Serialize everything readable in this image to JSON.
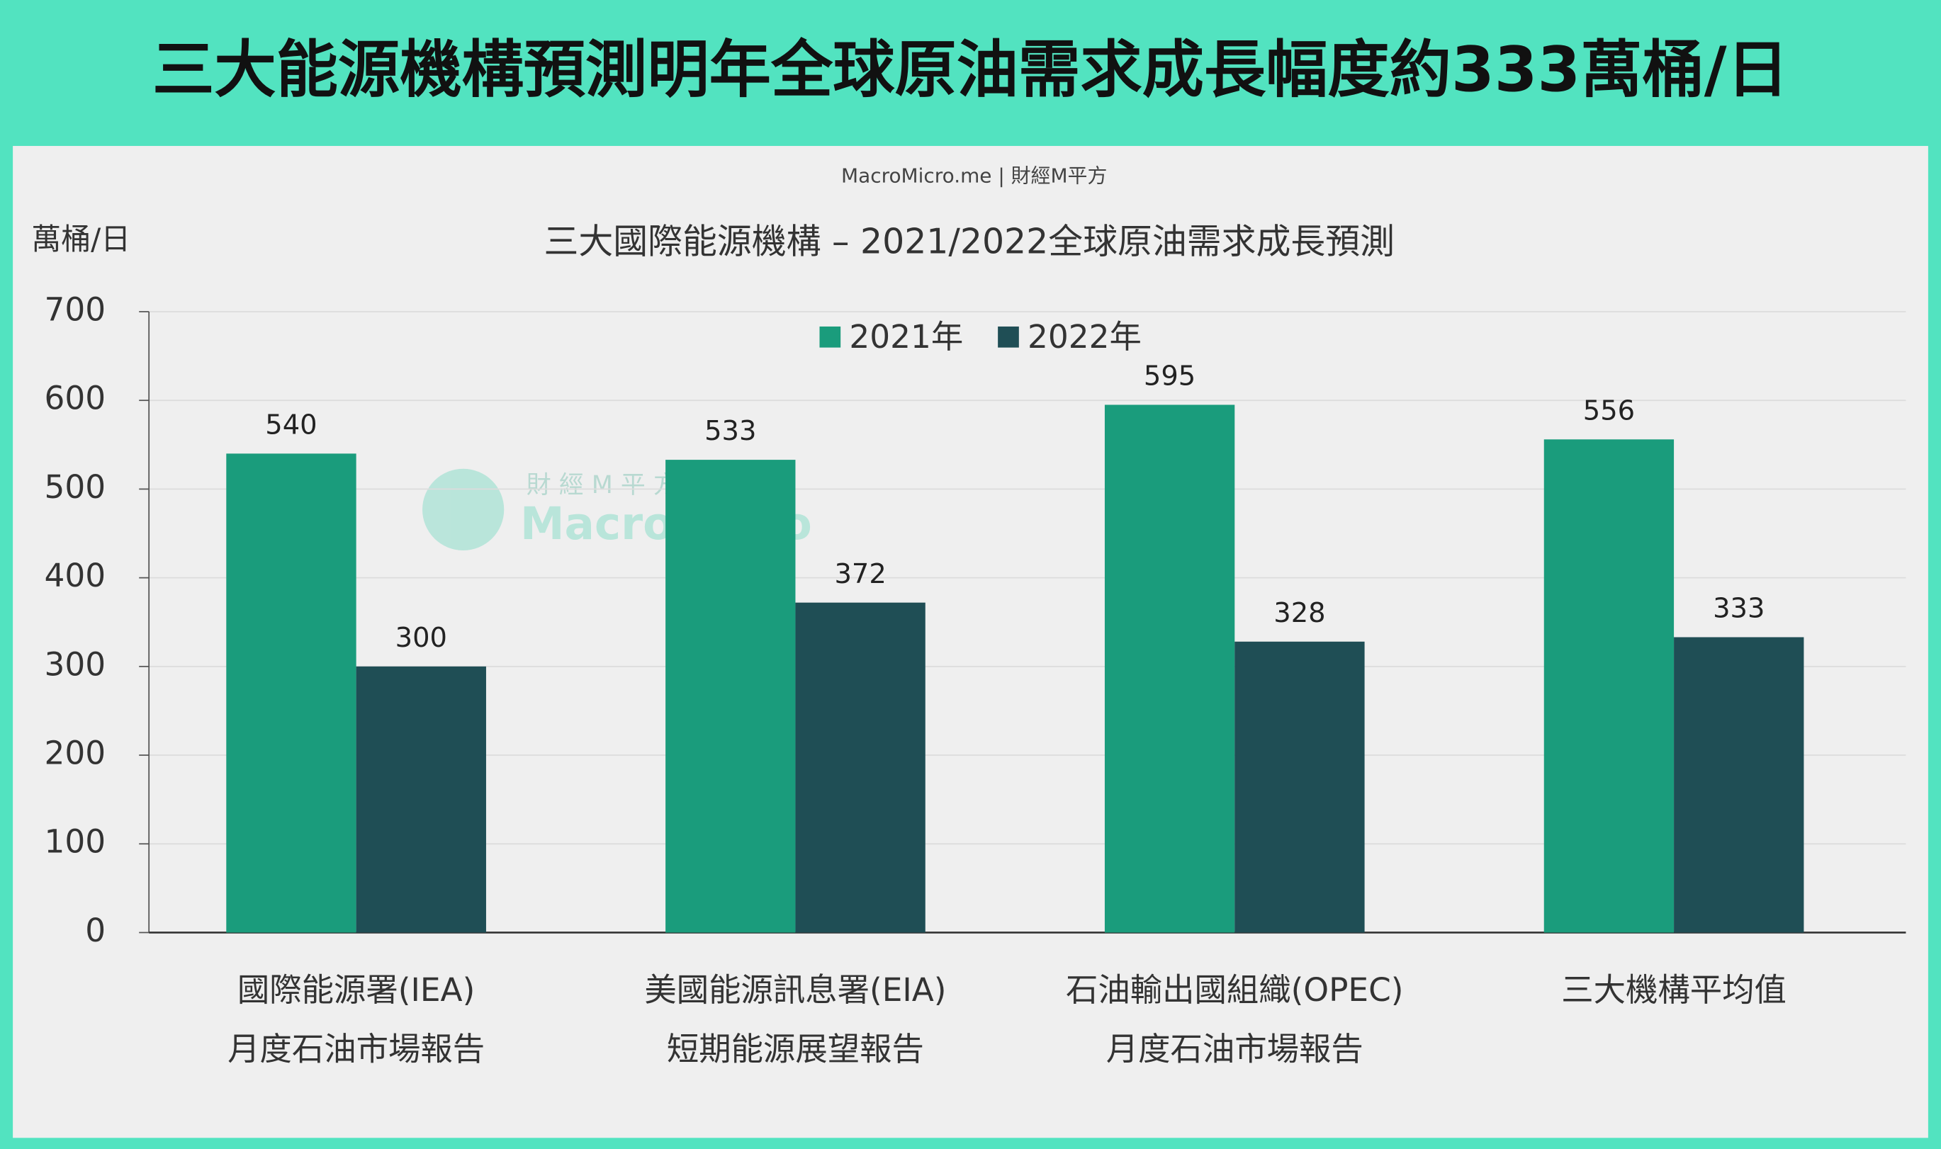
{
  "chart_data": {
    "type": "bar",
    "headline": "三大能源機構預測明年全球原油需求成長幅度約333萬桶/日",
    "source": "MacroMicro.me | 財經M平方",
    "watermark": [
      "財 經 M 平 方",
      "MacroMicro"
    ],
    "y_label": "萬桶/日",
    "title": "三大國際能源機構 – 2021/2022全球原油需求成長預測",
    "categories": [
      [
        "國際能源署(IEA)",
        "月度石油市場報告"
      ],
      [
        "美國能源訊息署(EIA)",
        "短期能源展望報告"
      ],
      [
        "石油輸出國組織(OPEC)",
        "月度石油市場報告"
      ],
      [
        "三大機構平均值"
      ]
    ],
    "series": [
      {
        "name": "2021年",
        "color": "#1a9c7c",
        "values": [
          540,
          533,
          595,
          556
        ]
      },
      {
        "name": "2022年",
        "color": "#1f4e55",
        "values": [
          300,
          372,
          328,
          333
        ]
      }
    ],
    "ylim": [
      0,
      700
    ],
    "yticks": [
      0,
      100,
      200,
      300,
      400,
      500,
      600,
      700
    ],
    "grid": true,
    "legend": "top"
  }
}
